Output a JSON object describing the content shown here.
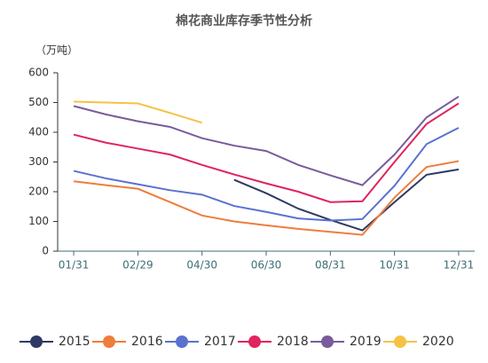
{
  "chart_data": {
    "type": "line",
    "title": "棉花商业库存季节性分析",
    "y_label": "（万吨）",
    "categories": [
      "01/31",
      null,
      "02/29",
      null,
      "04/30",
      null,
      "06/30",
      null,
      "08/31",
      null,
      "10/31",
      null,
      "12/31"
    ],
    "ylim": [
      0,
      600
    ],
    "yticks": [
      0,
      100,
      200,
      300,
      400,
      500,
      600
    ],
    "legend": "bottom",
    "series": [
      {
        "name": "2015",
        "color": "#2e3a63",
        "values": [
          null,
          null,
          null,
          null,
          null,
          240,
          195,
          143,
          105,
          70,
          165,
          257,
          275
        ]
      },
      {
        "name": "2016",
        "color": "#ef7d3c",
        "values": [
          235,
          222,
          210,
          165,
          120,
          100,
          87,
          75,
          65,
          55,
          180,
          283,
          303
        ]
      },
      {
        "name": "2017",
        "color": "#5a72cf",
        "values": [
          270,
          245,
          225,
          205,
          190,
          152,
          132,
          110,
          103,
          108,
          220,
          360,
          415
        ]
      },
      {
        "name": "2018",
        "color": "#e0245e",
        "values": [
          392,
          365,
          345,
          325,
          290,
          258,
          228,
          200,
          165,
          168,
          300,
          428,
          497
        ]
      },
      {
        "name": "2019",
        "color": "#7a5b9b",
        "values": [
          488,
          460,
          437,
          418,
          380,
          355,
          337,
          290,
          255,
          222,
          325,
          450,
          520
        ]
      },
      {
        "name": "2020",
        "color": "#f6c244",
        "values": [
          503,
          500,
          497,
          465,
          432,
          null,
          null,
          null,
          null,
          null,
          null,
          null,
          null
        ]
      }
    ]
  }
}
